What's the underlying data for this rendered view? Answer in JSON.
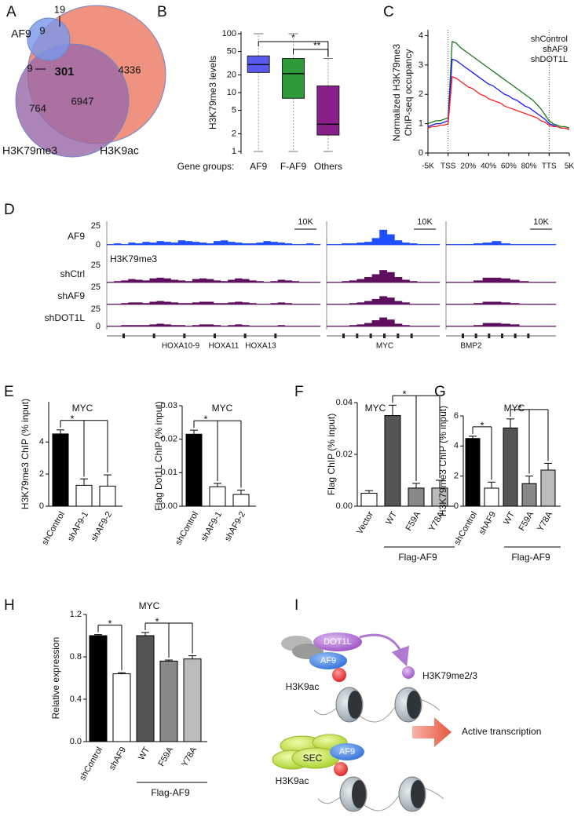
{
  "chart_data": [
    {
      "type": "venn",
      "panel": "A",
      "sets": [
        {
          "name": "AF9",
          "color": "#2346e8",
          "fill": "#7d97ea"
        },
        {
          "name": "H3K79me3",
          "color": "#7b1c7b",
          "fill": "#9b6aa8"
        },
        {
          "name": "H3K9ac",
          "color": "#ec2a1f",
          "fill": "#ec7a63"
        }
      ],
      "regions": [
        19,
        9,
        9,
        301,
        4336,
        6947,
        764
      ]
    },
    {
      "type": "box",
      "panel": "B",
      "ylabel": "H3K79me3 levels",
      "xlabel": "Gene groups:",
      "categories": [
        "AF9",
        "F-AF9",
        "Others"
      ],
      "colors": [
        "#5a5af0",
        "#2e9a3a",
        "#8a1e8a"
      ],
      "boxes": [
        {
          "low": 1,
          "q1": 22,
          "median": 30,
          "q3": 42,
          "high": 100
        },
        {
          "low": 1,
          "q1": 8,
          "median": 21,
          "q3": 38,
          "high": 100
        },
        {
          "low": 1,
          "q1": 1.9,
          "median": 2.9,
          "q3": 13,
          "high": 38
        }
      ],
      "yscale": "log",
      "ylim": [
        1,
        100
      ],
      "yticks": [
        1,
        2,
        5,
        10,
        20,
        50,
        100
      ],
      "significance": [
        {
          "label": "*",
          "from": 0,
          "to": 2
        },
        {
          "label": "**",
          "from": 1,
          "to": 2
        }
      ]
    },
    {
      "type": "line",
      "panel": "C",
      "ylabel": [
        "Normalized H3K79me3",
        "ChIP-seq occupancy"
      ],
      "x": [
        0,
        2,
        4,
        6,
        8,
        10,
        12,
        14,
        16,
        18,
        20,
        22,
        24,
        26,
        28,
        30,
        32,
        34,
        36,
        38,
        40,
        42,
        44,
        46,
        48,
        50,
        52,
        54,
        56,
        58,
        60,
        62,
        64,
        66,
        68,
        70
      ],
      "xlim": [
        0,
        70
      ],
      "xticks": [
        {
          "value": 0,
          "label": "-5K"
        },
        {
          "value": 10,
          "label": "TSS"
        },
        {
          "value": 20,
          "label": "20%"
        },
        {
          "value": 30,
          "label": "40%"
        },
        {
          "value": 40,
          "label": "60%"
        },
        {
          "value": 50,
          "label": "80%"
        },
        {
          "value": 60,
          "label": "TTS"
        },
        {
          "value": 70,
          "label": "5K"
        }
      ],
      "vlines": [
        10,
        60
      ],
      "ylim": [
        0,
        4.2
      ],
      "yticks": [
        0,
        1,
        2,
        3,
        4
      ],
      "legend": "top-right",
      "series": [
        {
          "name": "shControl",
          "color": "#1a7a1a",
          "values": [
            1.0,
            1.05,
            1.1,
            1.1,
            1.15,
            1.2,
            3.8,
            3.75,
            3.6,
            3.5,
            3.4,
            3.3,
            3.2,
            3.1,
            3.0,
            2.9,
            2.8,
            2.7,
            2.6,
            2.5,
            2.4,
            2.3,
            2.2,
            2.1,
            2.0,
            1.9,
            1.8,
            1.65,
            1.5,
            1.3,
            1.1,
            1.0,
            0.95,
            0.9,
            0.9,
            0.85
          ]
        },
        {
          "name": "shAF9",
          "color": "#1a1aff",
          "values": [
            0.9,
            0.95,
            1.0,
            1.0,
            1.05,
            1.1,
            3.2,
            3.15,
            3.05,
            2.95,
            2.85,
            2.75,
            2.65,
            2.55,
            2.45,
            2.35,
            2.3,
            2.2,
            2.1,
            2.0,
            1.95,
            1.85,
            1.8,
            1.7,
            1.6,
            1.55,
            1.45,
            1.35,
            1.25,
            1.15,
            1.0,
            0.95,
            0.9,
            0.85,
            0.85,
            0.8
          ]
        },
        {
          "name": "shDOT1L",
          "color": "#ff2020",
          "values": [
            0.85,
            0.9,
            0.9,
            0.95,
            0.95,
            1.0,
            2.6,
            2.55,
            2.45,
            2.35,
            2.25,
            2.2,
            2.1,
            2.0,
            1.95,
            1.85,
            1.8,
            1.75,
            1.7,
            1.6,
            1.55,
            1.5,
            1.45,
            1.4,
            1.35,
            1.3,
            1.25,
            1.2,
            1.1,
            1.05,
            0.95,
            0.9,
            0.9,
            0.85,
            0.85,
            0.8
          ]
        }
      ]
    },
    {
      "type": "tracks",
      "panel": "D",
      "group_label": "H3K79me3",
      "ylim": [
        0,
        25
      ],
      "loci": [
        {
          "genes": [
            "HOXA10-9",
            "HOXA11",
            "HOXA13"
          ],
          "scale": "10K"
        },
        {
          "genes": [
            "MYC"
          ],
          "scale": "10K"
        },
        {
          "genes": [
            "BMP2"
          ],
          "scale": "10K"
        }
      ],
      "tracks": [
        {
          "name": "AF9",
          "color": "#1f4fff",
          "yticks": [
            0,
            25
          ],
          "values": [
            [
              1,
              2,
              1,
              3,
              2,
              4,
              3,
              5,
              4,
              3,
              6,
              5,
              4,
              3,
              2,
              5,
              6,
              4,
              3,
              2,
              2,
              3,
              5,
              4,
              3,
              2,
              1,
              1,
              2,
              1
            ],
            [
              1,
              1,
              2,
              2,
              3,
              4,
              9,
              20,
              14,
              6,
              3,
              2,
              1,
              1,
              1
            ],
            [
              1,
              1,
              1,
              2,
              3,
              5,
              2,
              1,
              1,
              1,
              1,
              1
            ]
          ]
        },
        {
          "name": "shCtrl",
          "color": "#5e0f5e",
          "yticks": [
            25
          ],
          "values": [
            [
              1,
              2,
              3,
              5,
              4,
              3,
              6,
              7,
              6,
              4,
              3,
              2,
              5,
              6,
              5,
              3,
              2,
              4,
              6,
              5,
              3,
              2,
              1,
              2,
              4,
              3,
              2,
              1,
              1,
              1
            ],
            [
              1,
              1,
              2,
              3,
              5,
              8,
              12,
              18,
              15,
              8,
              4,
              2,
              1,
              1,
              1
            ],
            [
              1,
              1,
              1,
              3,
              7,
              7,
              6,
              4,
              2,
              1,
              1,
              1
            ]
          ]
        },
        {
          "name": "shAF9",
          "color": "#5e0f5e",
          "yticks": [
            25
          ],
          "values": [
            [
              1,
              1,
              2,
              3,
              3,
              2,
              4,
              5,
              4,
              3,
              2,
              2,
              3,
              4,
              4,
              2,
              2,
              3,
              4,
              3,
              2,
              1,
              1,
              2,
              3,
              2,
              1,
              1,
              1,
              1
            ],
            [
              1,
              1,
              1,
              2,
              3,
              5,
              8,
              12,
              10,
              5,
              3,
              1,
              1,
              1,
              1
            ],
            [
              1,
              1,
              1,
              2,
              4,
              4,
              3,
              2,
              1,
              1,
              1,
              1
            ]
          ]
        },
        {
          "name": "shDOT1L",
          "color": "#5e0f5e",
          "yticks": [
            0,
            25
          ],
          "values": [
            [
              1,
              1,
              2,
              2,
              2,
              2,
              3,
              4,
              3,
              2,
              2,
              1,
              2,
              3,
              3,
              2,
              1,
              2,
              3,
              2,
              1,
              1,
              1,
              1,
              2,
              1,
              1,
              1,
              1,
              1
            ],
            [
              1,
              1,
              1,
              2,
              3,
              5,
              9,
              13,
              10,
              4,
              2,
              1,
              1,
              1,
              1
            ],
            [
              1,
              1,
              1,
              2,
              5,
              5,
              4,
              3,
              1,
              1,
              1,
              1
            ]
          ]
        }
      ]
    },
    {
      "type": "bar",
      "panel": "E",
      "title": "MYC",
      "ylabel": "H3K79me3 ChIP (% input)",
      "categories": [
        "shControl",
        "shAF9-1",
        "shAF9-2"
      ],
      "values": [
        4.5,
        1.3,
        1.25
      ],
      "errors": [
        0.25,
        0.4,
        0.7
      ],
      "colors": [
        "#000000",
        "#ffffff",
        "#ffffff"
      ],
      "ylim": [
        0,
        6.5
      ],
      "yticks": [
        0,
        2,
        4
      ],
      "significance": [
        {
          "label": "*",
          "from": 0,
          "to": [
            1,
            2
          ]
        }
      ]
    },
    {
      "type": "bar",
      "title": "MYC",
      "ylabel": "Flag Dot1L ChIP (% input)",
      "categories": [
        "shControl",
        "shAF9-1",
        "shAF9-2"
      ],
      "values": [
        0.0215,
        0.0058,
        0.0035
      ],
      "errors": [
        0.0012,
        0.001,
        0.0013
      ],
      "colors": [
        "#000000",
        "#ffffff",
        "#ffffff"
      ],
      "ylim": [
        0,
        0.03
      ],
      "yticks": [
        {
          "value": 0,
          "label": "0.00"
        },
        0.01,
        0.02,
        0.03
      ],
      "significance": [
        {
          "label": "*",
          "from": 0,
          "to": [
            1,
            2
          ]
        }
      ]
    },
    {
      "type": "bar",
      "panel": "F",
      "title": "MYC",
      "ylabel": "Flag ChIP (% input)",
      "categories": [
        "Vector",
        "WT",
        "F59A",
        "Y78A"
      ],
      "values": [
        0.005,
        0.035,
        0.007,
        0.007
      ],
      "errors": [
        0.001,
        0.004,
        0.0018,
        0.003
      ],
      "colors": [
        "#ffffff",
        "#555555",
        "#888888",
        "#bbbbbb"
      ],
      "ylim": [
        0,
        0.04
      ],
      "yticks": [
        {
          "value": 0,
          "label": "0.00"
        },
        0.02,
        0.04
      ],
      "group": {
        "label": "Flag-AF9",
        "first": 1
      },
      "significance": [
        {
          "label": "*",
          "from": 1,
          "to": [
            2,
            3
          ]
        }
      ]
    },
    {
      "type": "bar",
      "panel": "G",
      "title": "MYC",
      "ylabel": "H3K79me3 ChIP (% input)",
      "categories": [
        "shControl",
        "shAF9",
        "WT",
        "F59A",
        "Y78A"
      ],
      "values": [
        4.5,
        1.2,
        5.2,
        1.5,
        2.4
      ],
      "errors": [
        0.15,
        0.4,
        0.6,
        0.5,
        0.45
      ],
      "colors": [
        "#000000",
        "#ffffff",
        "#555555",
        "#888888",
        "#bbbbbb"
      ],
      "ylim": [
        0,
        6
      ],
      "yticks": [
        0,
        2,
        4,
        6
      ],
      "group": {
        "label": "Flag-AF9",
        "first": 2
      },
      "significance": [
        {
          "label": "*",
          "from": 0,
          "to": [
            1
          ]
        },
        {
          "label": "*",
          "from": 2,
          "to": [
            3,
            4
          ]
        }
      ]
    },
    {
      "type": "bar",
      "panel": "H",
      "title": "MYC",
      "ylabel": "Relative expression",
      "categories": [
        "shControl",
        "shAF9",
        "WT",
        "F59A",
        "Y78A"
      ],
      "values": [
        1.0,
        0.64,
        1.0,
        0.76,
        0.78
      ],
      "errors": [
        0.01,
        0.01,
        0.03,
        0.01,
        0.03
      ],
      "colors": [
        "#000000",
        "#ffffff",
        "#555555",
        "#888888",
        "#bbbbbb"
      ],
      "ylim": [
        0,
        1.2
      ],
      "yticks": [
        {
          "value": 0,
          "label": "0.0"
        },
        0.4,
        0.8,
        1.2
      ],
      "group": {
        "label": "Flag-AF9",
        "first": 2
      },
      "significance": [
        {
          "label": "*",
          "from": 0,
          "to": [
            1
          ]
        },
        {
          "label": "*",
          "from": 2,
          "to": [
            3,
            4
          ]
        }
      ]
    }
  ],
  "diagram": {
    "panel": "I",
    "labels": [
      "DOT1L",
      "AF9",
      "H3K9ac",
      "H3K79me2/3",
      "SEC",
      "AF9",
      "H3K9ac",
      "Active transcription"
    ]
  }
}
